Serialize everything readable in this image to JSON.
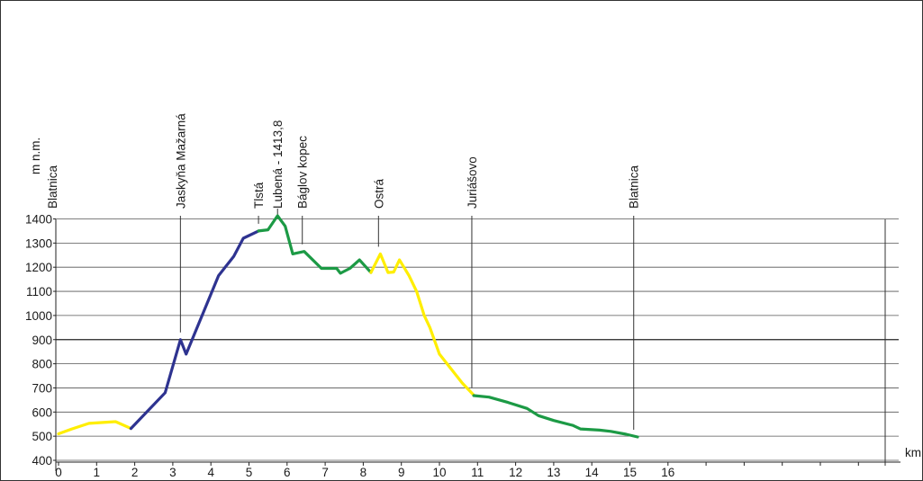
{
  "chart_data": {
    "type": "line",
    "title": "",
    "ylabel": "m n.m.",
    "xlabel": "km",
    "ylim": [
      400,
      1400
    ],
    "xlim": [
      0,
      22
    ],
    "yticks": [
      "400",
      "500",
      "600",
      "700",
      "800",
      "900",
      "1000",
      "1100",
      "1200",
      "1300",
      "1400"
    ],
    "xticks": [
      "0",
      "1",
      "2",
      "3",
      "4",
      "5",
      "6",
      "7",
      "8",
      "9",
      "10",
      "11",
      "12",
      "13",
      "14",
      "15",
      "16"
    ],
    "grid": true,
    "colors": {
      "yellow": "#ffee00",
      "blue": "#2e3390",
      "green": "#1c9a45"
    },
    "waypoints": [
      {
        "name": "Blatnica",
        "x": 0.0
      },
      {
        "name": "Jaskyňa Mažarná",
        "x": 3.2
      },
      {
        "name": "Tlstá",
        "x": 5.25
      },
      {
        "name": "Lubená - 1413,8",
        "x": 5.75
      },
      {
        "name": "Báglov kopec",
        "x": 6.4
      },
      {
        "name": "Ostrá",
        "x": 8.4
      },
      {
        "name": "Juriášovo",
        "x": 10.85
      },
      {
        "name": "Blatnica",
        "x": 15.1
      }
    ],
    "series": [
      {
        "color": "yellow",
        "x": [
          0.0,
          0.35,
          0.8,
          1.5,
          1.9
        ],
        "y": [
          510,
          530,
          553,
          560,
          532
        ]
      },
      {
        "color": "blue",
        "x": [
          1.9,
          2.8,
          3.2,
          3.35,
          4.2,
          4.6,
          4.85,
          5.25
        ],
        "y": [
          532,
          680,
          900,
          840,
          1165,
          1245,
          1320,
          1350
        ]
      },
      {
        "color": "green",
        "x": [
          5.25,
          5.5,
          5.75,
          5.95,
          6.15,
          6.45,
          6.9,
          7.3,
          7.4,
          7.65,
          7.9,
          8.2
        ],
        "y": [
          1350,
          1355,
          1413,
          1370,
          1255,
          1265,
          1195,
          1195,
          1175,
          1195,
          1230,
          1178
        ]
      },
      {
        "color": "yellow",
        "x": [
          8.2,
          8.45,
          8.65,
          8.8,
          8.95,
          9.2,
          9.4,
          9.6,
          9.75,
          10.0,
          10.3,
          10.6,
          10.9
        ],
        "y": [
          1178,
          1255,
          1178,
          1180,
          1230,
          1165,
          1100,
          1000,
          950,
          840,
          780,
          720,
          670
        ]
      },
      {
        "color": "green",
        "x": [
          10.9,
          11.3,
          11.8,
          12.3,
          12.6,
          13.0,
          13.5,
          13.7,
          14.2,
          14.5,
          14.9,
          15.2
        ],
        "y": [
          668,
          662,
          640,
          615,
          585,
          565,
          545,
          530,
          525,
          520,
          508,
          497
        ]
      }
    ]
  }
}
